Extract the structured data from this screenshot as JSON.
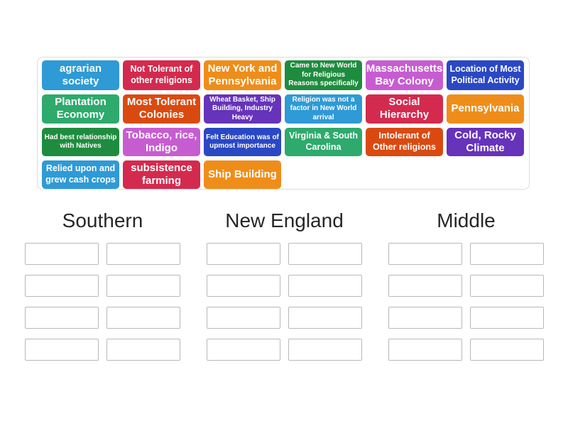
{
  "theme": {
    "tile_text_color": "#ffffff",
    "tray_border_color": "#dcdcdc",
    "slot_border_color": "#b8b8b8",
    "heading_color": "#262626"
  },
  "tray": {
    "tiles": [
      {
        "label": "agrarian society",
        "color": "#2e9ad6",
        "size": "lg"
      },
      {
        "label": "Not Tolerant of other religions",
        "color": "#d42a4e",
        "size": "md"
      },
      {
        "label": "New York and Pennsylvania",
        "color": "#ef8d1a",
        "size": "lg"
      },
      {
        "label": "Came to New World for Religious Reasons specifically",
        "color": "#1e8c3e",
        "size": "sm"
      },
      {
        "label": "Massachusetts Bay Colony",
        "color": "#c75cd1",
        "size": "lg"
      },
      {
        "label": "Location of Most Political Activity",
        "color": "#2a48c4",
        "size": "md"
      },
      {
        "label": "Plantation Economy",
        "color": "#2daa6c",
        "size": "lg"
      },
      {
        "label": "Most Tolerant Colonies",
        "color": "#da4a10",
        "size": "lg"
      },
      {
        "label": "Wheat Basket, Ship Building, Industry Heavy",
        "color": "#6633bb",
        "size": "sm"
      },
      {
        "label": "Religion was not a factor in New World arrival",
        "color": "#2e9ad6",
        "size": "sm"
      },
      {
        "label": "Social Hierarchy",
        "color": "#d42a4e",
        "size": "lg"
      },
      {
        "label": "Pennsylvania",
        "color": "#ef8d1a",
        "size": "lg"
      },
      {
        "label": "Had best relationship with Natives",
        "color": "#1e8c3e",
        "size": "sm"
      },
      {
        "label": "Tobacco, rice, Indigo",
        "color": "#c75cd1",
        "size": "lg"
      },
      {
        "label": "Felt Education was of upmost importance",
        "color": "#2a48c4",
        "size": "sm"
      },
      {
        "label": "Virginia & South Carolina",
        "color": "#2daa6c",
        "size": "md"
      },
      {
        "label": "Intolerant of Other religions",
        "color": "#da4a10",
        "size": "md"
      },
      {
        "label": "Cold, Rocky Climate",
        "color": "#6633bb",
        "size": "lg"
      },
      {
        "label": "Relied upon and grew cash crops",
        "color": "#2e9ad6",
        "size": "md"
      },
      {
        "label": "subsistence farming",
        "color": "#d42a4e",
        "size": "lg"
      },
      {
        "label": "Ship Building",
        "color": "#ef8d1a",
        "size": "lg"
      }
    ]
  },
  "groups": [
    {
      "label": "Southern",
      "slot_count": 8
    },
    {
      "label": "New England",
      "slot_count": 8
    },
    {
      "label": "Middle",
      "slot_count": 8
    }
  ]
}
